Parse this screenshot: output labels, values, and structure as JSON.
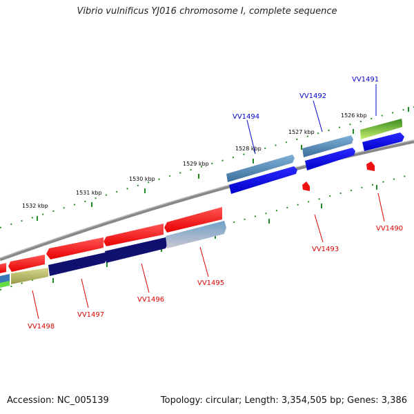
{
  "title": "Vibrio vulnificus YJ016 chromosome I, complete sequence",
  "footer": {
    "accession": "Accession: NC_005139",
    "topology": "Topology: circular; Length: 3,354,505 bp; Genes: 3,386"
  },
  "scale_ticks": [
    "1532 kbp",
    "1531 kbp",
    "1530 kbp",
    "1529 kbp",
    "1528 kbp",
    "1527 kbp",
    "1526 kbp"
  ],
  "forward_genes": [
    "VV1491",
    "VV1492",
    "VV1494"
  ],
  "reverse_genes": [
    "VV1490",
    "VV1493",
    "VV1495",
    "VV1496",
    "VV1497",
    "VV1498"
  ],
  "colors": {
    "forward_label": "#0000cc",
    "reverse_label": "#dd0000",
    "backbone": "#888888",
    "tick": "#228822"
  }
}
